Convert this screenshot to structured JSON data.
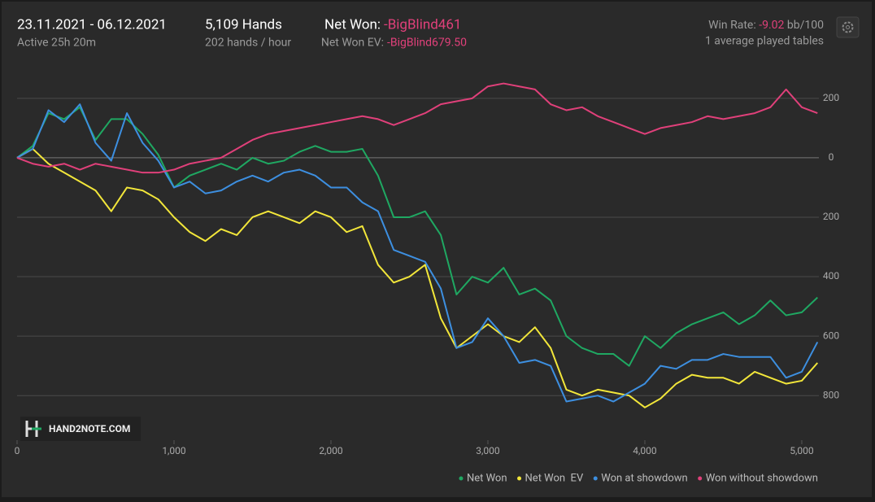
{
  "header": {
    "date_range": "23.11.2021 - 06.12.2021",
    "active": "Active 25h 20m",
    "hands": "5,109 Hands",
    "rate": "202 hands / hour",
    "net_won_label": "Net Won:",
    "net_won": "-BigBlind461",
    "net_won_ev_label": "Net Won  EV:",
    "net_won_ev": "-BigBlind679.50",
    "win_rate_label": "Win Rate:",
    "win_rate": "-9.02",
    "win_rate_unit": "bb/100",
    "tables": "1 average played tables",
    "logo": "HAND2NOTE.COM"
  },
  "chart_data": {
    "type": "line",
    "legend": "bottom-right",
    "grid": true,
    "x": [
      0,
      100,
      200,
      300,
      400,
      500,
      600,
      700,
      800,
      900,
      1000,
      1100,
      1200,
      1300,
      1400,
      1500,
      1600,
      1700,
      1800,
      1900,
      2000,
      2100,
      2200,
      2300,
      2400,
      2500,
      2600,
      2700,
      2800,
      2900,
      3000,
      3100,
      3200,
      3300,
      3400,
      3500,
      3600,
      3700,
      3800,
      3900,
      4000,
      4100,
      4200,
      4300,
      4400,
      4500,
      4600,
      4700,
      4800,
      4900,
      5000,
      5100
    ],
    "xlim": [
      0,
      5109
    ],
    "xticks": [
      0,
      {
        "value": 1000,
        "label": "1,000"
      },
      {
        "value": 2000,
        "label": "2,000"
      },
      {
        "value": 3000,
        "label": "3,000"
      },
      {
        "value": 4000,
        "label": "4,000"
      },
      {
        "value": 5000,
        "label": "5,000"
      }
    ],
    "ylim": [
      -950,
      320
    ],
    "yticks": [
      200,
      0,
      {
        "value": -200,
        "label": "200"
      },
      {
        "value": -400,
        "label": "400"
      },
      {
        "value": -600,
        "label": "600"
      },
      {
        "value": -800,
        "label": "800"
      }
    ],
    "series": [
      {
        "name": "Net Won",
        "color": "#1fa862",
        "values": [
          0,
          40,
          150,
          130,
          170,
          60,
          130,
          130,
          80,
          10,
          -100,
          -60,
          -40,
          -20,
          -40,
          0,
          -20,
          -10,
          20,
          40,
          20,
          20,
          30,
          -60,
          -200,
          -200,
          -180,
          -260,
          -460,
          -400,
          -420,
          -370,
          -460,
          -440,
          -480,
          -600,
          -640,
          -660,
          -660,
          -700,
          -600,
          -640,
          -590,
          -560,
          -540,
          -520,
          -560,
          -530,
          -480,
          -530,
          -520,
          -470
        ]
      },
      {
        "name": "Net Won  EV",
        "color": "#f2e63a",
        "values": [
          0,
          30,
          -20,
          -50,
          -80,
          -110,
          -180,
          -100,
          -110,
          -140,
          -200,
          -250,
          -280,
          -240,
          -260,
          -200,
          -180,
          -200,
          -220,
          -180,
          -200,
          -250,
          -230,
          -360,
          -420,
          -400,
          -360,
          -540,
          -640,
          -600,
          -560,
          -600,
          -620,
          -570,
          -640,
          -780,
          -800,
          -780,
          -790,
          -800,
          -840,
          -810,
          -760,
          -730,
          -740,
          -740,
          -760,
          -720,
          -740,
          -760,
          -750,
          -690
        ]
      },
      {
        "name": "Won at showdown",
        "color": "#3d8fe0",
        "values": [
          0,
          30,
          160,
          120,
          180,
          50,
          -10,
          150,
          50,
          -10,
          -100,
          -80,
          -120,
          -110,
          -80,
          -60,
          -80,
          -50,
          -40,
          -60,
          -100,
          -100,
          -150,
          -180,
          -310,
          -330,
          -350,
          -440,
          -640,
          -620,
          -540,
          -600,
          -690,
          -680,
          -700,
          -820,
          -810,
          -800,
          -820,
          -790,
          -760,
          -700,
          -710,
          -680,
          -680,
          -660,
          -670,
          -670,
          -670,
          -740,
          -720,
          -620
        ]
      },
      {
        "name": "Won without showdown",
        "color": "#e0407a",
        "values": [
          0,
          -20,
          -30,
          -20,
          -40,
          -20,
          -30,
          -40,
          -50,
          -50,
          -40,
          -20,
          -10,
          0,
          30,
          60,
          80,
          90,
          100,
          110,
          120,
          130,
          140,
          130,
          110,
          130,
          150,
          180,
          190,
          200,
          240,
          250,
          240,
          230,
          180,
          160,
          170,
          140,
          120,
          100,
          80,
          100,
          110,
          120,
          140,
          130,
          140,
          150,
          170,
          230,
          170,
          150
        ]
      }
    ]
  }
}
